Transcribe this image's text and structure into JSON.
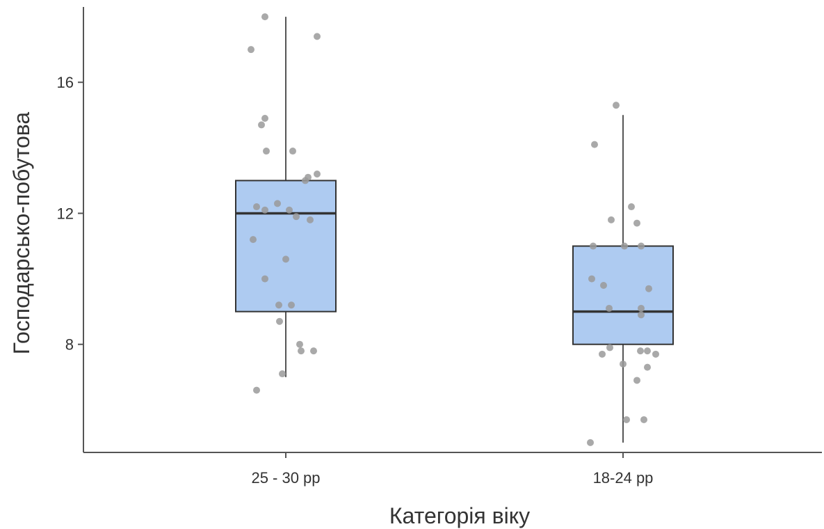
{
  "chart_data": {
    "type": "box",
    "xlabel": "Категорія віку",
    "ylabel": "Господарсько-побутова",
    "ylim": [
      4.7,
      18.3
    ],
    "yticks": [
      8,
      12,
      16
    ],
    "grid": false,
    "colors": {
      "box_fill": "#aecbf1",
      "box_stroke": "#333333",
      "median": "#333333",
      "whisker": "#555555",
      "points": "#9a9a9a",
      "axis": "#555555"
    },
    "categories": [
      "25 - 30 pp",
      "18-24 pp"
    ],
    "boxes": [
      {
        "category": "25 - 30 pp",
        "min": 7.0,
        "q1": 9.0,
        "median": 12.0,
        "q3": 13.0,
        "max": 18.0,
        "points": [
          18.0,
          17.4,
          17.0,
          14.9,
          14.7,
          13.9,
          13.9,
          13.2,
          13.1,
          13.0,
          12.3,
          12.2,
          12.1,
          12.1,
          11.9,
          11.8,
          11.2,
          10.6,
          10.0,
          9.2,
          9.2,
          8.7,
          8.0,
          7.8,
          7.8,
          7.1,
          6.6
        ]
      },
      {
        "category": "18-24 pp",
        "min": 5.0,
        "q1": 8.0,
        "median": 9.0,
        "q3": 11.0,
        "max": 15.0,
        "points": [
          15.3,
          14.1,
          12.2,
          11.8,
          11.7,
          11.0,
          11.0,
          11.0,
          10.0,
          9.8,
          9.7,
          9.1,
          9.1,
          8.9,
          7.9,
          7.8,
          7.8,
          7.7,
          7.7,
          7.4,
          7.3,
          6.9,
          5.7,
          5.7,
          5.0
        ]
      }
    ]
  }
}
